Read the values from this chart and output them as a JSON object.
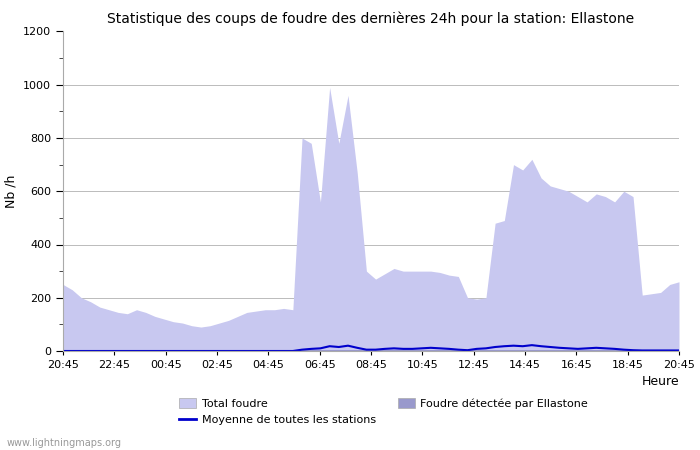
{
  "title": "Statistique des coups de foudre des dernières 24h pour la station: Ellastone",
  "ylabel": "Nb /h",
  "xlabel": "Heure",
  "watermark": "www.lightningmaps.org",
  "ylim": [
    0,
    1200
  ],
  "x_labels": [
    "20:45",
    "22:45",
    "00:45",
    "02:45",
    "04:45",
    "06:45",
    "08:45",
    "10:45",
    "12:45",
    "14:45",
    "16:45",
    "18:45",
    "20:45"
  ],
  "total_foudre_color": "#c8c8f0",
  "detected_color": "#9999cc",
  "mean_line_color": "#0000cc",
  "background_color": "#ffffff",
  "grid_color": "#bbbbbb",
  "total_foudre": [
    250,
    230,
    200,
    185,
    165,
    155,
    145,
    140,
    155,
    145,
    130,
    120,
    110,
    105,
    95,
    90,
    95,
    105,
    115,
    130,
    145,
    150,
    155,
    155,
    160,
    155,
    800,
    780,
    560,
    990,
    780,
    960,
    670,
    300,
    270,
    290,
    310,
    300,
    300,
    300,
    300,
    295,
    285,
    280,
    200,
    195,
    200,
    480,
    490,
    700,
    680,
    720,
    650,
    620,
    610,
    600,
    580,
    560,
    590,
    580,
    560,
    600,
    580,
    210,
    215,
    220,
    250,
    260
  ],
  "detected_foudre": [
    2,
    2,
    2,
    2,
    2,
    2,
    2,
    2,
    2,
    2,
    2,
    2,
    2,
    2,
    2,
    2,
    2,
    2,
    2,
    2,
    2,
    2,
    2,
    2,
    2,
    2,
    2,
    2,
    2,
    2,
    2,
    2,
    2,
    2,
    2,
    2,
    2,
    2,
    2,
    2,
    2,
    2,
    2,
    2,
    2,
    2,
    2,
    2,
    2,
    2,
    2,
    2,
    2,
    2,
    2,
    2,
    2,
    2,
    2,
    2,
    2,
    2,
    2,
    2,
    2,
    2,
    2,
    2
  ],
  "mean_line": [
    0,
    0,
    0,
    0,
    0,
    0,
    0,
    0,
    0,
    0,
    0,
    0,
    0,
    0,
    0,
    0,
    0,
    0,
    0,
    0,
    0,
    0,
    0,
    0,
    0,
    0,
    5,
    8,
    10,
    18,
    15,
    20,
    12,
    5,
    5,
    8,
    10,
    8,
    8,
    10,
    12,
    10,
    8,
    5,
    3,
    8,
    10,
    15,
    18,
    20,
    18,
    22,
    18,
    15,
    12,
    10,
    8,
    10,
    12,
    10,
    8,
    5,
    3,
    2,
    2,
    2,
    2,
    2
  ],
  "n_points": 68
}
